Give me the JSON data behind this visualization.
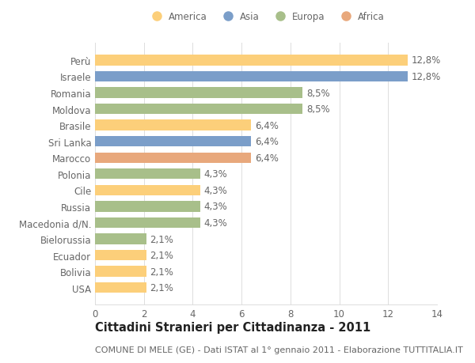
{
  "countries": [
    "USA",
    "Bolivia",
    "Ecuador",
    "Bielorussia",
    "Macedonia d/N.",
    "Russia",
    "Cile",
    "Polonia",
    "Marocco",
    "Sri Lanka",
    "Brasile",
    "Moldova",
    "Romania",
    "Israele",
    "Perù"
  ],
  "values": [
    2.1,
    2.1,
    2.1,
    2.1,
    4.3,
    4.3,
    4.3,
    4.3,
    6.4,
    6.4,
    6.4,
    8.5,
    8.5,
    12.8,
    12.8
  ],
  "continents": [
    "America",
    "America",
    "America",
    "Europa",
    "Europa",
    "Europa",
    "America",
    "Europa",
    "Africa",
    "Asia",
    "America",
    "Europa",
    "Europa",
    "Asia",
    "America"
  ],
  "colors": {
    "America": "#FCCF7A",
    "Asia": "#7B9EC9",
    "Europa": "#A8BF8A",
    "Africa": "#E8A87C"
  },
  "legend_order": [
    "America",
    "Asia",
    "Europa",
    "Africa"
  ],
  "xlim": [
    0,
    14
  ],
  "xticks": [
    0,
    2,
    4,
    6,
    8,
    10,
    12,
    14
  ],
  "title": "Cittadini Stranieri per Cittadinanza - 2011",
  "subtitle": "COMUNE DI MELE (GE) - Dati ISTAT al 1° gennaio 2011 - Elaborazione TUTTITALIA.IT",
  "bg_color": "#ffffff",
  "bar_height": 0.65,
  "label_fontsize": 8.5,
  "title_fontsize": 10.5,
  "subtitle_fontsize": 8.0,
  "tick_fontsize": 8.5
}
